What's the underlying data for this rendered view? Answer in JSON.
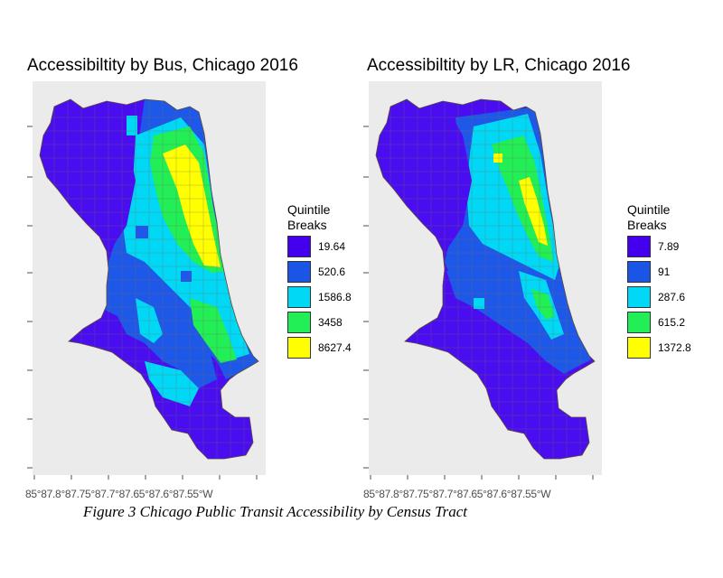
{
  "maps": [
    {
      "title": "Accessibiltity by Bus, Chicago 2016",
      "x_ticks": "85°87.8°87.75°87.7°87.65°87.6°87.55°W",
      "legend_title_line1": "Quintile",
      "legend_title_line2": "Breaks",
      "legend": [
        {
          "label": "19.64",
          "color": "#4400ee"
        },
        {
          "label": "520.6",
          "color": "#1a55e6"
        },
        {
          "label": "1586.8",
          "color": "#00d8f5"
        },
        {
          "label": "3458",
          "color": "#22ee55"
        },
        {
          "label": "8627.4",
          "color": "#ffff00"
        }
      ]
    },
    {
      "title": "Accessibiltity by LR, Chicago 2016",
      "x_ticks": "85°87.8°87.75°87.7°87.65°87.6°87.55°W",
      "legend_title_line1": "Quintile",
      "legend_title_line2": "Breaks",
      "legend": [
        {
          "label": "7.89",
          "color": "#4400ee"
        },
        {
          "label": "91",
          "color": "#1a55e6"
        },
        {
          "label": "287.6",
          "color": "#00d8f5"
        },
        {
          "label": "615.2",
          "color": "#22ee55"
        },
        {
          "label": "1372.8",
          "color": "#ffff00"
        }
      ]
    }
  ],
  "caption": "Figure 3 Chicago Public Transit Accessibility by Census Tract"
}
